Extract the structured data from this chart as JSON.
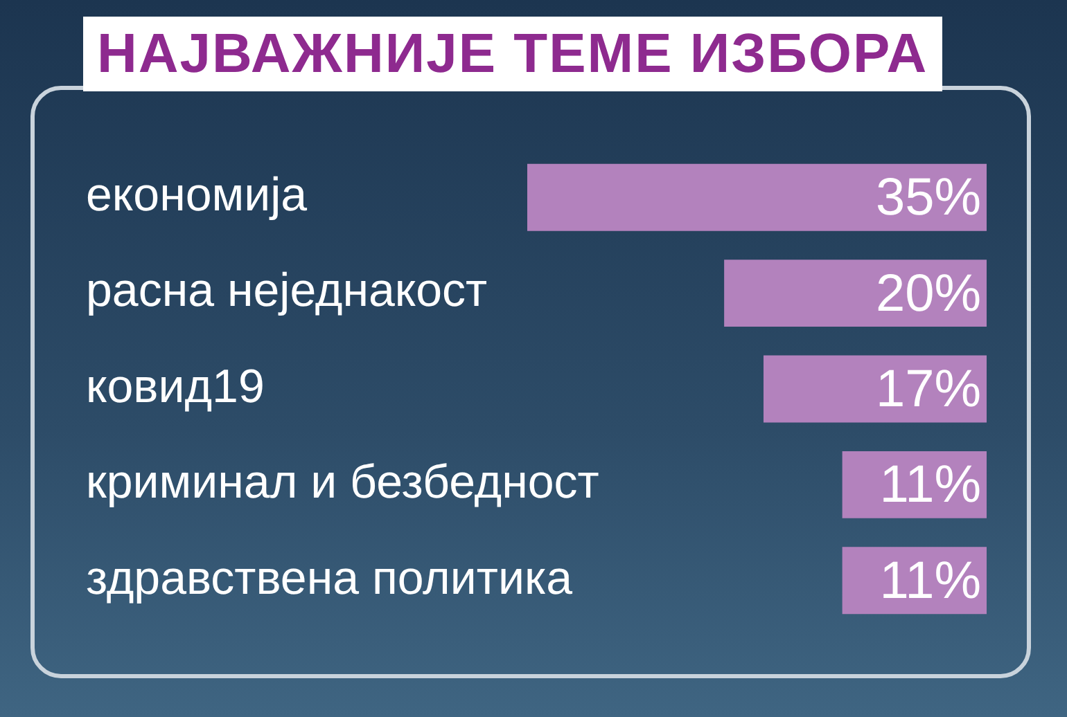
{
  "chart_data": {
    "type": "bar",
    "orientation": "horizontal",
    "title": "НАЈВАЖНИЈЕ ТЕМЕ ИЗБОРА",
    "categories": [
      "економија",
      "расна неједнакост",
      "ковид19",
      "криминал и безбедност",
      "здравствена политика"
    ],
    "values": [
      35,
      20,
      17,
      11,
      11
    ],
    "color": "#b382bd",
    "value_labels": [
      "35%",
      "20%",
      "17%",
      "11%",
      "11%"
    ]
  }
}
